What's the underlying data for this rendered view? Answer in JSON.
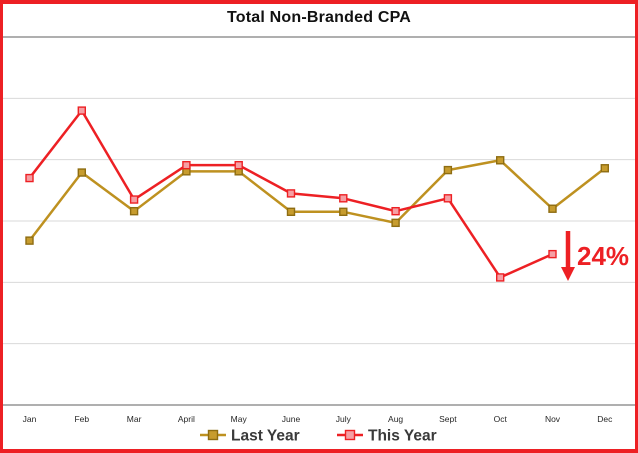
{
  "title": "Total Non-Branded CPA",
  "colors": {
    "frame_border": "#ED2024",
    "gridline": "#D9D9D9",
    "axis_line": "#AFAFAF",
    "axis_label_text": "#262626",
    "legend_text": "#3A3A3A",
    "title_text": "#111111",
    "annotation": "#ED2024"
  },
  "chart_data": {
    "type": "line",
    "title": "Total Non-Branded CPA",
    "xlabel": "",
    "ylabel": "",
    "categories": [
      "Jan",
      "Feb",
      "Mar",
      "April",
      "May",
      "June",
      "July",
      "Aug",
      "Sept",
      "Oct",
      "Nov",
      "Dec"
    ],
    "series": [
      {
        "name": "Last Year",
        "color": "#BE9120",
        "marker_fill": "#C79C2E",
        "marker_stroke": "#8E6D12",
        "values": [
          2.68,
          3.79,
          3.16,
          3.81,
          3.81,
          3.15,
          3.15,
          2.97,
          3.83,
          3.99,
          3.2,
          3.86
        ]
      },
      {
        "name": "This Year",
        "color": "#ED2024",
        "marker_fill": "#F59FA4",
        "marker_stroke": "#ED2024",
        "values": [
          3.7,
          4.8,
          3.35,
          3.91,
          3.91,
          3.45,
          3.37,
          3.16,
          3.37,
          2.08,
          2.46,
          null
        ]
      }
    ],
    "ylim": [
      0,
      6
    ],
    "y_gridline_step": 1,
    "y_axis_labels_visible": false,
    "value_units": "unlabeled gridline units (no y-axis tick labels shown in chart)",
    "grid": true,
    "legend_position": "bottom",
    "annotation": {
      "text": "24%",
      "arrow": "down",
      "near_category": "Nov"
    }
  },
  "legend": {
    "items": [
      {
        "label": "Last Year"
      },
      {
        "label": "This Year"
      }
    ]
  }
}
